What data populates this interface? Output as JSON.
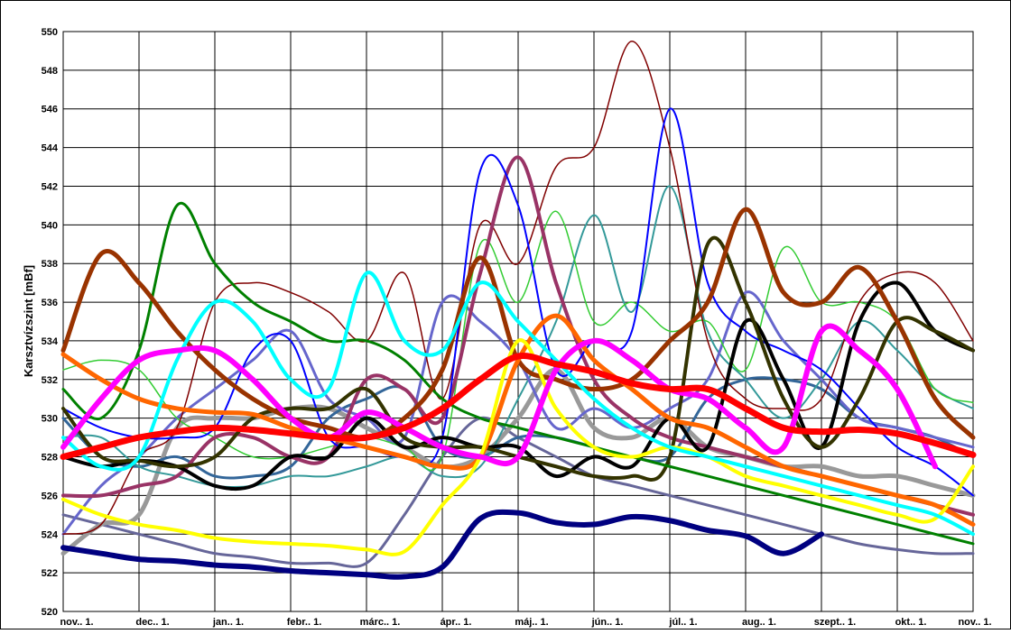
{
  "chart_data": {
    "type": "line",
    "y_label": "Karsztvízszint [mBf]",
    "xlim": [
      0,
      12
    ],
    "xticks": [
      {
        "value": 0,
        "label": "nov.. 1."
      },
      {
        "value": 1,
        "label": "dec.. 1."
      },
      {
        "value": 2,
        "label": "jan.. 1."
      },
      {
        "value": 3,
        "label": "febr.. 1."
      },
      {
        "value": 4,
        "label": "márc.. 1."
      },
      {
        "value": 5,
        "label": "ápr.. 1."
      },
      {
        "value": 6,
        "label": "máj.. 1."
      },
      {
        "value": 7,
        "label": "jún.. 1."
      },
      {
        "value": 8,
        "label": "júl.. 1."
      },
      {
        "value": 9,
        "label": "aug.. 1."
      },
      {
        "value": 10,
        "label": "szept.. 1."
      },
      {
        "value": 11,
        "label": "okt.. 1."
      },
      {
        "value": 12,
        "label": "nov.. 1."
      }
    ],
    "ylim": [
      520,
      550
    ],
    "yticks": [
      520,
      522,
      524,
      526,
      528,
      530,
      532,
      534,
      536,
      538,
      540,
      542,
      544,
      546,
      548,
      550
    ],
    "grid": true,
    "x": [
      0,
      0.5,
      1,
      1.5,
      2,
      2.5,
      3,
      3.5,
      4,
      4.5,
      5,
      5.5,
      6,
      6.5,
      7,
      7.5,
      8,
      8.5,
      9,
      9.5,
      10,
      10.5,
      11,
      11.5,
      12
    ],
    "series": [
      {
        "color": "#666699",
        "values": [
          525,
          524.5,
          524,
          523.5,
          523,
          522.8,
          522.5,
          522.5,
          522.5,
          525,
          528,
          530,
          529,
          528,
          527,
          526.5,
          526,
          525.5,
          525,
          524.5,
          524,
          523.5,
          523.2,
          523,
          523
        ]
      },
      {
        "color": "#999999",
        "values": [
          523,
          524.5,
          525,
          529.5,
          530,
          530,
          530.5,
          530.5,
          529.5,
          528.5,
          527.5,
          528,
          530,
          532.5,
          529.5,
          529,
          530,
          528.5,
          528,
          527.5,
          527.5,
          527,
          527,
          526.5,
          526
        ]
      },
      {
        "color": "#336699",
        "values": [
          530,
          528,
          527.5,
          528,
          527,
          527,
          527.5,
          530,
          531,
          531.5,
          528.5,
          528,
          529,
          529,
          528.5,
          528,
          528,
          531,
          532,
          532,
          531.5,
          530,
          529.5,
          529,
          528
        ]
      },
      {
        "color": "#339999",
        "values": [
          529,
          529,
          527.5,
          527,
          526.5,
          526.5,
          527,
          527,
          527.5,
          528,
          527,
          527.5,
          531,
          535,
          540.5,
          535.5,
          542,
          534.5,
          532,
          530,
          532,
          535,
          533.5,
          531.5,
          530.5
        ]
      },
      {
        "color": "#6666cc",
        "values": [
          524,
          526.5,
          528,
          530,
          531.5,
          533,
          534.5,
          531,
          530,
          529,
          536,
          535,
          533,
          529.5,
          530.5,
          529.5,
          530.5,
          532,
          536.5,
          534,
          532,
          530,
          529.5,
          529,
          528.5
        ]
      },
      {
        "color": "#33cc33",
        "values": [
          532.5,
          533,
          532.5,
          530,
          529,
          528,
          528,
          528.5,
          529,
          528.5,
          528,
          539,
          536,
          540.7,
          535,
          536,
          534.5,
          535,
          532.5,
          538.8,
          536,
          536,
          535,
          531.5,
          530.8
        ]
      },
      {
        "color": "#800000",
        "values": [
          524,
          524.5,
          528,
          529.5,
          536,
          537,
          536.5,
          535.5,
          534,
          537.5,
          531,
          540,
          538,
          543,
          544,
          549.5,
          544,
          534,
          531,
          530.5,
          531,
          536,
          537.5,
          537,
          534
        ]
      },
      {
        "color": "#993366",
        "values": [
          526,
          526,
          526.5,
          527,
          529,
          529,
          528,
          528,
          532,
          531.5,
          530,
          537.5,
          543.5,
          537,
          532,
          530,
          529,
          528.5,
          528,
          527.5,
          527,
          526.5,
          526,
          525.5,
          525
        ]
      },
      {
        "color": "#0000ff",
        "values": [
          530.5,
          529.5,
          529,
          529,
          529.5,
          533.5,
          534,
          529,
          528.5,
          528,
          529,
          542.8,
          541,
          532.5,
          534,
          534.5,
          546,
          537,
          534.5,
          533.5,
          532.5,
          530.5,
          528.5,
          527.5,
          526
        ]
      },
      {
        "color": "#000000",
        "values": [
          528,
          527.5,
          527.8,
          527.5,
          526.5,
          526.5,
          528,
          528,
          530,
          528.5,
          529,
          528.5,
          528.5,
          527,
          528,
          527.5,
          530,
          528.5,
          535,
          532,
          528.5,
          535,
          537,
          534.5,
          533.5
        ]
      },
      {
        "color": "#333300",
        "values": [
          530.5,
          528,
          527.8,
          527.5,
          528,
          530,
          530.5,
          530.5,
          531.5,
          529,
          528.5,
          528.5,
          528,
          527.5,
          527,
          527,
          528,
          539,
          536,
          531,
          528.5,
          531,
          535,
          534.5,
          533.5
        ]
      },
      {
        "color": "#008000",
        "values": [
          531.5,
          530,
          533.5,
          541,
          538,
          536,
          535,
          534,
          534,
          533,
          531,
          530,
          529.5,
          529,
          528.5,
          528,
          527.5,
          527,
          526.5,
          526,
          525.5,
          525,
          524.5,
          524,
          523.5
        ]
      },
      {
        "color": "#993300",
        "values": [
          533.5,
          538.5,
          537,
          534.5,
          532.5,
          531,
          530,
          529.5,
          529,
          530,
          532.5,
          538.3,
          533,
          532,
          531.5,
          532,
          534,
          536,
          540.8,
          536.5,
          536,
          537.8,
          535,
          531,
          529
        ]
      },
      {
        "color": "#ff6600",
        "values": [
          533.3,
          532,
          531,
          530.5,
          530.3,
          530.2,
          529.5,
          529,
          528.5,
          528,
          527.5,
          528,
          533,
          535.3,
          533,
          531.5,
          530,
          529.5,
          528.5,
          527.5,
          527,
          526.5,
          526,
          525.5,
          524.5
        ]
      },
      {
        "color": "#ffff00",
        "values": [
          525.8,
          525,
          524.5,
          524.2,
          523.8,
          523.6,
          523.5,
          523.4,
          523.2,
          523.1,
          525.5,
          528,
          534,
          530.5,
          528.5,
          528,
          528.5,
          528,
          527,
          526.5,
          526,
          525.5,
          525,
          524.8,
          527.5
        ]
      },
      {
        "color": "#00ffff",
        "values": [
          529,
          527.5,
          528,
          533,
          536,
          535,
          532,
          531.5,
          537.5,
          534,
          533.5,
          537,
          535,
          533,
          531,
          529.5,
          528.5,
          528,
          527.5,
          527,
          526.5,
          526,
          525.5,
          525,
          524
        ]
      },
      {
        "color": "#ff00ff",
        "values": [
          528.5,
          531,
          533,
          533.5,
          533.5,
          532,
          530,
          529,
          530.3,
          529.5,
          528.5,
          528,
          528,
          532.5,
          534,
          533,
          531.5,
          531,
          529.5,
          528.5,
          534.5,
          533.5,
          531.5,
          527.5,
          null
        ]
      },
      {
        "color": "#ff0000",
        "values": [
          528,
          528.5,
          529,
          529.3,
          529.5,
          529.4,
          529.2,
          529,
          529,
          529.5,
          530.5,
          532,
          533.2,
          532.8,
          532.4,
          531.8,
          531.5,
          531.5,
          530.5,
          529.5,
          529.3,
          529.4,
          529.2,
          528.7,
          528.1
        ]
      },
      {
        "color": "#000080",
        "values": [
          523.3,
          523,
          522.7,
          522.6,
          522.4,
          522.3,
          522.1,
          522,
          521.9,
          521.8,
          522.3,
          524.8,
          525.1,
          524.6,
          524.5,
          524.9,
          524.7,
          524.2,
          523.9,
          523,
          524,
          null,
          null,
          null,
          null
        ]
      }
    ]
  }
}
